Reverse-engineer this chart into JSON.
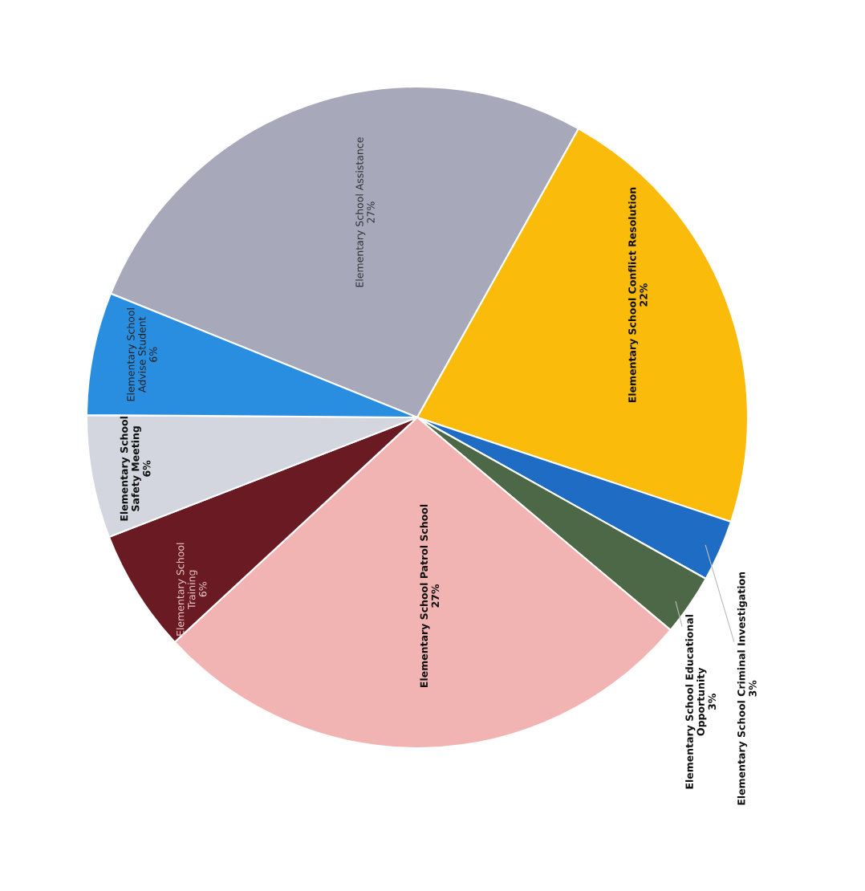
{
  "chart_data": {
    "type": "pie",
    "categories": [
      "Elementary School Assistance",
      "Elementary School Conflict Resolution",
      "Elementary School Criminal Investigation",
      "Elementary School Educational Opportunity",
      "Elementary School Patrol School",
      "Elementary School Training",
      "Elementary School Safety Meeting",
      "Elementary School Advise Student"
    ],
    "values": [
      27,
      22,
      3,
      3,
      27,
      6,
      6,
      6
    ],
    "value_labels": [
      "27%",
      "22%",
      "3%",
      "3%",
      "27%",
      "6%",
      "6%",
      "6%"
    ],
    "colors": [
      "#a7a8ba",
      "#fbbb0a",
      "#1e6cc4",
      "#4d6847",
      "#f1b4b3",
      "#6a1a22",
      "#d3d6de",
      "#2a8ee0"
    ]
  }
}
